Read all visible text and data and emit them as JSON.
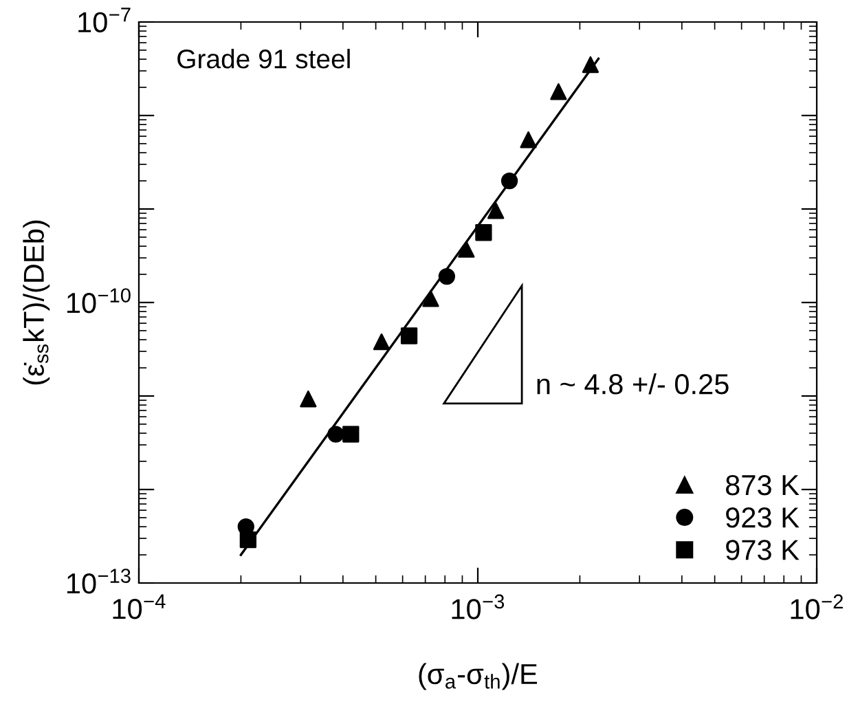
{
  "chart_data": {
    "type": "scatter",
    "xlabel": "(σ$_{a}$-σ$_{th}$)/E",
    "ylabel": "(ε̇$_{ss}$kT)/(DEb)",
    "log": "xy",
    "xlim": [
      0.0001,
      0.01
    ],
    "ylim": [
      1e-13,
      1e-07
    ],
    "xticks": [
      {
        "value": 0.0001,
        "label": "10$^{−4}$"
      },
      {
        "value": 0.001,
        "label": "10$^{−3}$"
      },
      {
        "value": 0.01,
        "label": "10$^{−2}$"
      }
    ],
    "yticks": [
      {
        "value": 1e-13,
        "label": "10$^{−13}$"
      },
      {
        "value": 1e-12,
        "label": null
      },
      {
        "value": 1e-11,
        "label": null
      },
      {
        "value": 1e-10,
        "label": "10$^{−10}$"
      },
      {
        "value": 1e-09,
        "label": null
      },
      {
        "value": 1e-08,
        "label": null
      },
      {
        "value": 1e-07,
        "label": "10$^{−7}$"
      }
    ],
    "grid": false,
    "legend": "bottom right",
    "annotations": [
      "Grade 91 steel",
      "n ~ 4.8 +/- 0.25"
    ],
    "series": [
      {
        "name": "873 K",
        "color": "#000000",
        "marker": "triangle",
        "x": [
          0.00215,
          0.00173,
          0.00141,
          0.00113,
          0.000925,
          0.000726,
          0.00052,
          0.000316
        ],
        "values": [
          3.5e-08,
          1.8e-08,
          5.5e-09,
          9.6e-10,
          3.7e-10,
          1.1e-10,
          3.8e-11,
          9.3e-12
        ]
      },
      {
        "name": "923 K",
        "color": "#000000",
        "marker": "circle",
        "x": [
          0.00124,
          0.00081,
          0.000381,
          0.000207
        ],
        "values": [
          2e-09,
          1.9e-10,
          3.9e-12,
          4e-13
        ]
      },
      {
        "name": "973 K",
        "color": "#000000",
        "marker": "square",
        "x": [
          0.00104,
          0.000627,
          0.000422,
          0.00021
        ],
        "values": [
          5.6e-10,
          4.4e-11,
          3.9e-12,
          2.9e-13
        ]
      },
      {
        "type": "line",
        "color": "#000000",
        "line_style": "solid",
        "marker": "none",
        "x": [
          0.0002,
          0.00227
        ],
        "values": [
          2e-13,
          4.05e-08
        ]
      }
    ]
  }
}
